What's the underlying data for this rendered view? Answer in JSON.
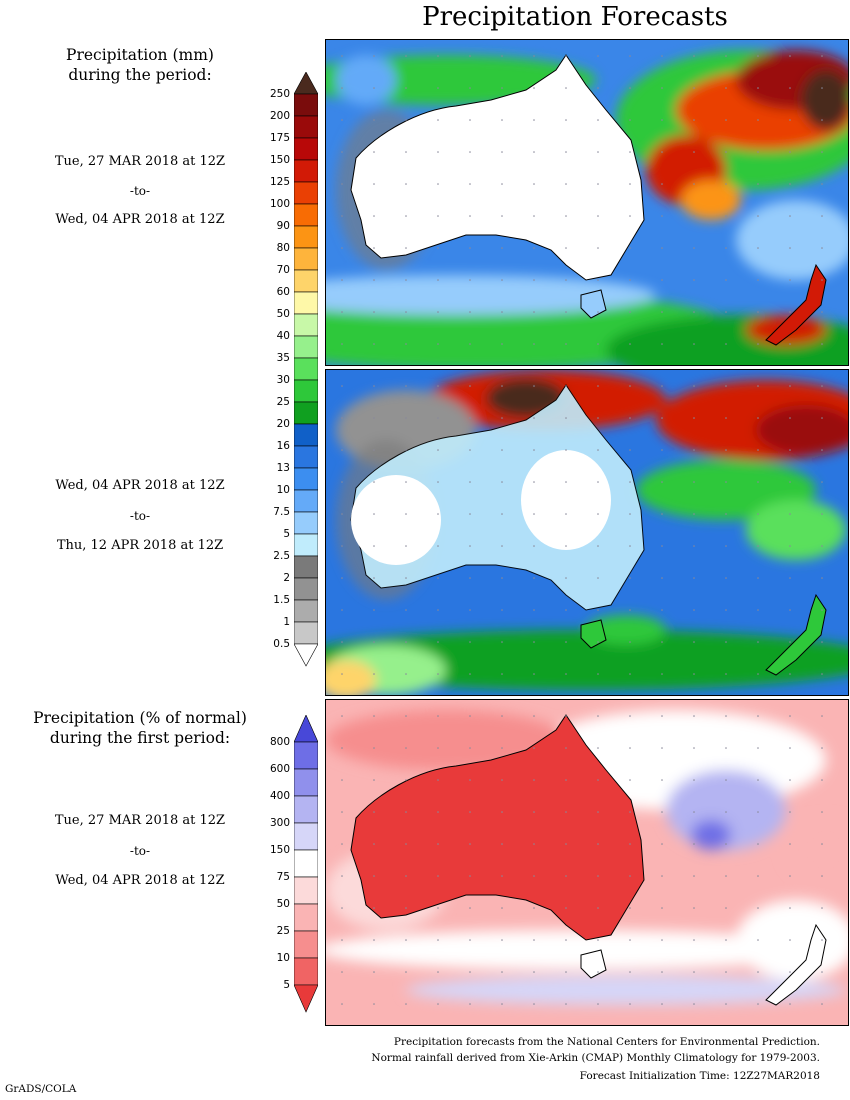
{
  "title": "Precipitation Forecasts",
  "period1": {
    "header_line1": "Precipitation (mm)",
    "header_line2": "during the period:",
    "start": "Tue, 27 MAR 2018 at 12Z",
    "to": "-to-",
    "end": "Wed, 04 APR 2018 at 12Z"
  },
  "period2": {
    "start": "Wed, 04 APR 2018 at 12Z",
    "to": "-to-",
    "end": "Thu, 12 APR 2018 at 12Z"
  },
  "period3": {
    "header_line1": "Precipitation (% of normal)",
    "header_line2": "during the first period:",
    "start": "Tue, 27 MAR 2018 at 12Z",
    "to": "-to-",
    "end": "Wed, 04 APR 2018 at 12Z"
  },
  "mm_scale": {
    "labels": [
      "250",
      "200",
      "175",
      "150",
      "125",
      "100",
      "90",
      "80",
      "70",
      "60",
      "50",
      "40",
      "35",
      "30",
      "25",
      "20",
      "16",
      "13",
      "10",
      "7.5",
      "5",
      "2.5",
      "2",
      "1.5",
      "1",
      "0.5"
    ],
    "colors": [
      "#4a2a1e",
      "#7a0c0c",
      "#9a0a0a",
      "#b80808",
      "#d21a06",
      "#ea4004",
      "#f86c04",
      "#fc9414",
      "#feb43c",
      "#fed46a",
      "#fef8a8",
      "#c8f8a8",
      "#96f08c",
      "#5ae05c",
      "#2ec83a",
      "#10a020",
      "#1060c8",
      "#2a76e0",
      "#3c8ef0",
      "#64aaf8",
      "#96ccfc",
      "#c0ecfc",
      "#7a7a7a",
      "#929292",
      "#acacac",
      "#c8c8c8",
      "#ffffff"
    ]
  },
  "pct_scale": {
    "labels": [
      "800",
      "600",
      "400",
      "300",
      "150",
      "75",
      "50",
      "25",
      "10",
      "5"
    ],
    "colors": [
      "#4848d8",
      "#6e6ee6",
      "#9090ec",
      "#b4b4f2",
      "#d6d6f8",
      "#ffffff",
      "#fcdada",
      "#fab4b4",
      "#f68e8e",
      "#f06464",
      "#e83a3a"
    ]
  },
  "footer": {
    "line1": "Precipitation forecasts from the National Centers for Environmental Prediction.",
    "line2": "Normal rainfall derived from Xie-Arkin (CMAP) Monthly Climatology for 1979-2003.",
    "line3": "Forecast Initialization Time: 12Z27MAR2018"
  },
  "credit": "GrADS/COLA"
}
